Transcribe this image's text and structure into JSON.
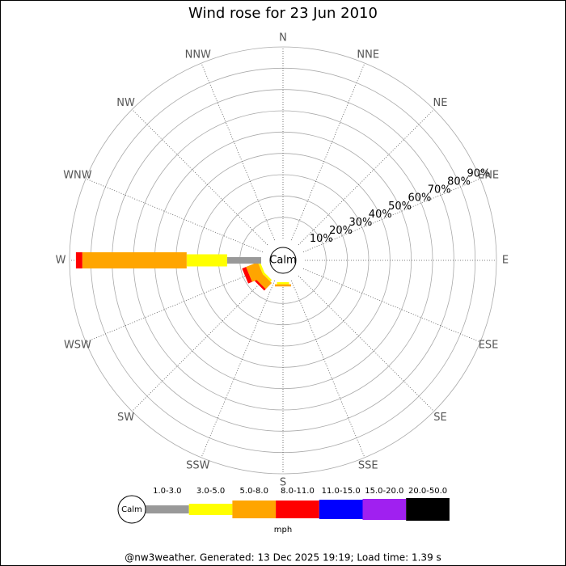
{
  "chart_data": {
    "type": "windrose",
    "title": "Wind rose for 23 Jun 2010",
    "directions": [
      "N",
      "NNE",
      "NE",
      "ENE",
      "E",
      "ESE",
      "SE",
      "SSE",
      "S",
      "SSW",
      "SW",
      "WSW",
      "W",
      "WNW",
      "NW",
      "NNW"
    ],
    "series": [
      {
        "name": "1.0-3.0",
        "color": "#999999",
        "values": [
          0,
          0,
          0,
          0,
          0,
          0,
          0,
          0,
          0,
          0,
          0,
          0,
          16,
          0,
          0,
          0
        ]
      },
      {
        "name": "3.0-5.0",
        "color": "#ffff00",
        "values": [
          0,
          0,
          0,
          0,
          0,
          0,
          0,
          0,
          1,
          0,
          1,
          1,
          19,
          0,
          0,
          0
        ]
      },
      {
        "name": "5.0-8.0",
        "color": "#ffa500",
        "values": [
          0,
          0,
          0,
          0,
          0,
          0,
          0,
          0,
          1,
          0,
          4,
          6,
          49,
          0,
          0,
          0
        ]
      },
      {
        "name": "8.0-11.0",
        "color": "#ff0000",
        "values": [
          0,
          0,
          0,
          0,
          0,
          0,
          0,
          0,
          0,
          0,
          1,
          2,
          3,
          0,
          0,
          0
        ]
      },
      {
        "name": "11.0-15.0",
        "color": "#0000ff",
        "values": [
          0,
          0,
          0,
          0,
          0,
          0,
          0,
          0,
          0,
          0,
          0,
          0,
          0,
          0,
          0,
          0
        ]
      },
      {
        "name": "15.0-20.0",
        "color": "#a020f0",
        "values": [
          0,
          0,
          0,
          0,
          0,
          0,
          0,
          0,
          0,
          0,
          0,
          0,
          0,
          0,
          0,
          0
        ]
      },
      {
        "name": "20.0-50.0",
        "color": "#000000",
        "values": [
          0,
          0,
          0,
          0,
          0,
          0,
          0,
          0,
          0,
          0,
          0,
          0,
          0,
          0,
          0,
          0
        ]
      }
    ],
    "ylim": [
      0,
      90
    ],
    "yticks": [
      {
        "value": 10,
        "label": "10%"
      },
      {
        "value": 20,
        "label": "20%"
      },
      {
        "value": 30,
        "label": "30%"
      },
      {
        "value": 40,
        "label": "40%"
      },
      {
        "value": 50,
        "label": "50%"
      },
      {
        "value": 60,
        "label": "60%"
      },
      {
        "value": 70,
        "label": "70%"
      },
      {
        "value": 80,
        "label": "80%"
      },
      {
        "value": 90,
        "label": "90%"
      }
    ],
    "calm_label": "Calm",
    "unit": "mph"
  },
  "footer": "@nw3weather. Generated: 13 Dec 2025 19:19; Load time: 1.39 s"
}
